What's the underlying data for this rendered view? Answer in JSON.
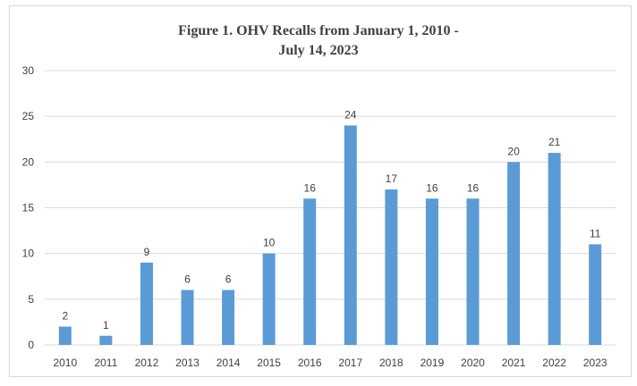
{
  "chart_data": {
    "type": "bar",
    "title_line1": "Figure 1. OHV Recalls from January 1, 2010 -",
    "title_line2": "July 14, 2023",
    "categories": [
      "2010",
      "2011",
      "2012",
      "2013",
      "2014",
      "2015",
      "2016",
      "2017",
      "2018",
      "2019",
      "2020",
      "2021",
      "2022",
      "2023"
    ],
    "values": [
      2,
      1,
      9,
      6,
      6,
      10,
      16,
      24,
      17,
      16,
      16,
      20,
      21,
      11
    ],
    "data_labels": true,
    "xlabel": "",
    "ylabel": "",
    "ylim": [
      0,
      30
    ],
    "yticks": [
      0,
      5,
      10,
      15,
      20,
      25,
      30
    ],
    "grid": true,
    "legend": "none",
    "bar_color": "#5b9bd5",
    "grid_color": "#d9d9d9"
  }
}
